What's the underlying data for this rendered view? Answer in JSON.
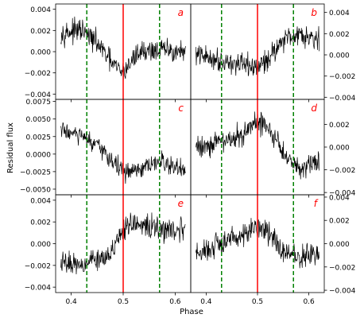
{
  "figure": {
    "xlabel": "Phase",
    "ylabel": "Residual flux",
    "colors": {
      "series": "#000000",
      "center_line": "#ff0000",
      "dashed_line": "#008000",
      "panel_letter": "#ff0000"
    }
  },
  "chart_data": [
    {
      "panel": "a",
      "type": "line",
      "grid": false,
      "y_axis_side": "left",
      "xlim": [
        0.37,
        0.63
      ],
      "ylim": [
        -0.0045,
        0.0045
      ],
      "yticks": [
        -0.004,
        -0.002,
        0.0,
        0.002,
        0.004
      ],
      "ytick_labels": [
        "−0.004",
        "−0.002",
        "0.000",
        "0.002",
        "0.004"
      ],
      "xticks": [
        0.4,
        0.5,
        0.6
      ],
      "xtick_labels": [
        "0.4",
        "0.5",
        "0.6"
      ],
      "vlines": [
        {
          "x": 0.5,
          "style": "solid",
          "color": "red"
        },
        {
          "x": 0.43,
          "style": "dashed",
          "color": "green"
        },
        {
          "x": 0.57,
          "style": "dashed",
          "color": "green"
        }
      ],
      "trend": {
        "x": [
          0.38,
          0.42,
          0.45,
          0.48,
          0.5,
          0.53,
          0.57,
          0.62
        ],
        "y": [
          0.0018,
          0.002,
          0.0008,
          -0.0012,
          -0.002,
          0.0,
          0.0002,
          -0.0001
        ]
      },
      "noise": 0.0009
    },
    {
      "panel": "b",
      "type": "line",
      "grid": false,
      "y_axis_side": "right",
      "xlim": [
        0.37,
        0.63
      ],
      "ylim": [
        -0.0042,
        0.0048
      ],
      "yticks": [
        -0.004,
        -0.002,
        0.0,
        0.002,
        0.004
      ],
      "ytick_labels": [
        "−0.004",
        "−0.002",
        "0.000",
        "0.002",
        "0.004"
      ],
      "xticks": [
        0.4,
        0.5,
        0.6
      ],
      "xtick_labels": [
        "0.4",
        "0.5",
        "0.6"
      ],
      "vlines": [
        {
          "x": 0.5,
          "style": "solid",
          "color": "red"
        },
        {
          "x": 0.43,
          "style": "dashed",
          "color": "green"
        },
        {
          "x": 0.57,
          "style": "dashed",
          "color": "green"
        }
      ],
      "trend": {
        "x": [
          0.38,
          0.43,
          0.47,
          0.5,
          0.52,
          0.55,
          0.58,
          0.62
        ],
        "y": [
          0.0,
          -0.0005,
          -0.001,
          -0.0012,
          -0.0004,
          0.0015,
          0.002,
          0.0016
        ]
      },
      "noise": 0.0009
    },
    {
      "panel": "c",
      "type": "line",
      "grid": false,
      "y_axis_side": "left",
      "xlim": [
        0.37,
        0.63
      ],
      "ylim": [
        -0.0058,
        0.0078
      ],
      "yticks": [
        -0.005,
        -0.0025,
        0.0,
        0.0025,
        0.005,
        0.0075
      ],
      "ytick_labels": [
        "−0.0050",
        "−0.0025",
        "0.0000",
        "0.0025",
        "0.0050",
        "0.0075"
      ],
      "xticks": [
        0.4,
        0.5,
        0.6
      ],
      "xtick_labels": [
        "0.4",
        "0.5",
        "0.6"
      ],
      "vlines": [
        {
          "x": 0.5,
          "style": "solid",
          "color": "red"
        },
        {
          "x": 0.43,
          "style": "dashed",
          "color": "green"
        },
        {
          "x": 0.57,
          "style": "dashed",
          "color": "green"
        }
      ],
      "trend": {
        "x": [
          0.38,
          0.42,
          0.46,
          0.5,
          0.53,
          0.57,
          0.62
        ],
        "y": [
          0.0035,
          0.0025,
          0.0005,
          -0.0025,
          -0.0025,
          -0.001,
          -0.0025
        ]
      },
      "noise": 0.0012
    },
    {
      "panel": "d",
      "type": "line",
      "grid": false,
      "y_axis_side": "right",
      "xlim": [
        0.37,
        0.63
      ],
      "ylim": [
        -0.0042,
        0.0042
      ],
      "yticks": [
        -0.004,
        -0.002,
        0.0,
        0.002
      ],
      "ytick_labels": [
        "−0.004",
        "−0.002",
        "0.000",
        "0.002"
      ],
      "xticks": [
        0.4,
        0.5,
        0.6
      ],
      "xtick_labels": [
        "0.4",
        "0.5",
        "0.6"
      ],
      "vlines": [
        {
          "x": 0.5,
          "style": "solid",
          "color": "red"
        },
        {
          "x": 0.43,
          "style": "dashed",
          "color": "green"
        },
        {
          "x": 0.57,
          "style": "dashed",
          "color": "green"
        }
      ],
      "trend": {
        "x": [
          0.38,
          0.43,
          0.47,
          0.5,
          0.52,
          0.55,
          0.58,
          0.62
        ],
        "y": [
          0.0,
          0.0005,
          0.001,
          0.0022,
          0.0018,
          -0.0005,
          -0.0018,
          -0.0012
        ]
      },
      "noise": 0.0009
    },
    {
      "panel": "e",
      "type": "line",
      "grid": false,
      "y_axis_side": "left",
      "xlim": [
        0.37,
        0.63
      ],
      "ylim": [
        -0.0045,
        0.0045
      ],
      "yticks": [
        -0.004,
        -0.002,
        0.0,
        0.002,
        0.004
      ],
      "ytick_labels": [
        "−0.004",
        "−0.002",
        "0.000",
        "0.002",
        "0.004"
      ],
      "xticks": [
        0.4,
        0.5,
        0.6
      ],
      "xtick_labels": [
        "0.4",
        "0.5",
        "0.6"
      ],
      "vlines": [
        {
          "x": 0.5,
          "style": "solid",
          "color": "red"
        },
        {
          "x": 0.43,
          "style": "dashed",
          "color": "green"
        },
        {
          "x": 0.57,
          "style": "dashed",
          "color": "green"
        }
      ],
      "trend": {
        "x": [
          0.38,
          0.42,
          0.46,
          0.49,
          0.51,
          0.55,
          0.58,
          0.62
        ],
        "y": [
          -0.0018,
          -0.0018,
          -0.0012,
          0.0,
          0.0018,
          0.0016,
          0.0012,
          0.0014
        ]
      },
      "noise": 0.0009
    },
    {
      "panel": "f",
      "type": "line",
      "grid": false,
      "y_axis_side": "right",
      "xlim": [
        0.37,
        0.63
      ],
      "ylim": [
        -0.0042,
        0.0042
      ],
      "yticks": [
        -0.004,
        -0.002,
        0.0,
        0.002,
        0.004
      ],
      "ytick_labels": [
        "−0.004",
        "−0.002",
        "0.000",
        "0.002",
        "0.004"
      ],
      "xticks": [
        0.4,
        0.5,
        0.6
      ],
      "xtick_labels": [
        "0.4",
        "0.5",
        "0.6"
      ],
      "vlines": [
        {
          "x": 0.5,
          "style": "solid",
          "color": "red"
        },
        {
          "x": 0.43,
          "style": "dashed",
          "color": "green"
        },
        {
          "x": 0.57,
          "style": "dashed",
          "color": "green"
        }
      ],
      "trend": {
        "x": [
          0.38,
          0.43,
          0.47,
          0.5,
          0.52,
          0.55,
          0.58,
          0.62
        ],
        "y": [
          -0.001,
          0.0,
          0.0008,
          0.0014,
          0.001,
          -0.0006,
          -0.0012,
          -0.0008
        ]
      },
      "noise": 0.0009
    }
  ]
}
